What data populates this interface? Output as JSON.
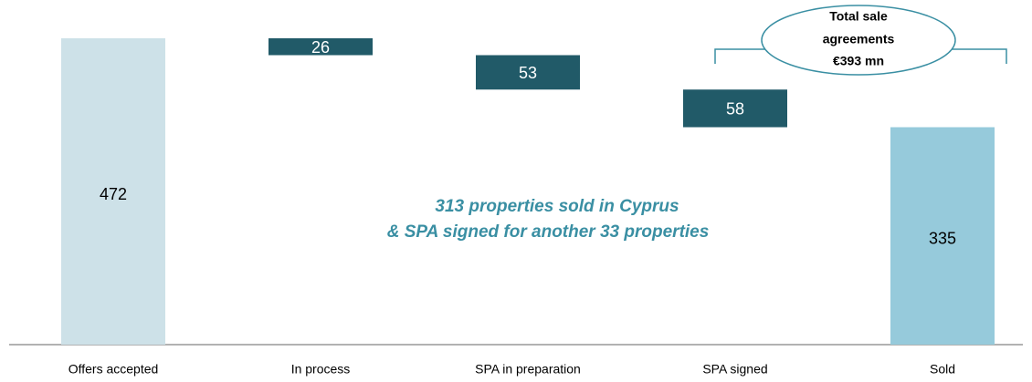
{
  "chart_data": {
    "type": "waterfall",
    "categories": [
      "Offers accepted",
      "In process",
      "SPA in preparation",
      "SPA signed",
      "Sold"
    ],
    "values": [
      472,
      26,
      53,
      58,
      335
    ],
    "colors": [
      "#cde1e8",
      "#215a68",
      "#215a68",
      "#215a68",
      "#96cadb"
    ],
    "ylim": [
      0,
      472
    ],
    "annotations": [
      "313 properties sold in Cyprus",
      "& SPA signed for another 33 properties"
    ],
    "callout": [
      "Total sale",
      "agreements",
      "€393 mn"
    ]
  }
}
